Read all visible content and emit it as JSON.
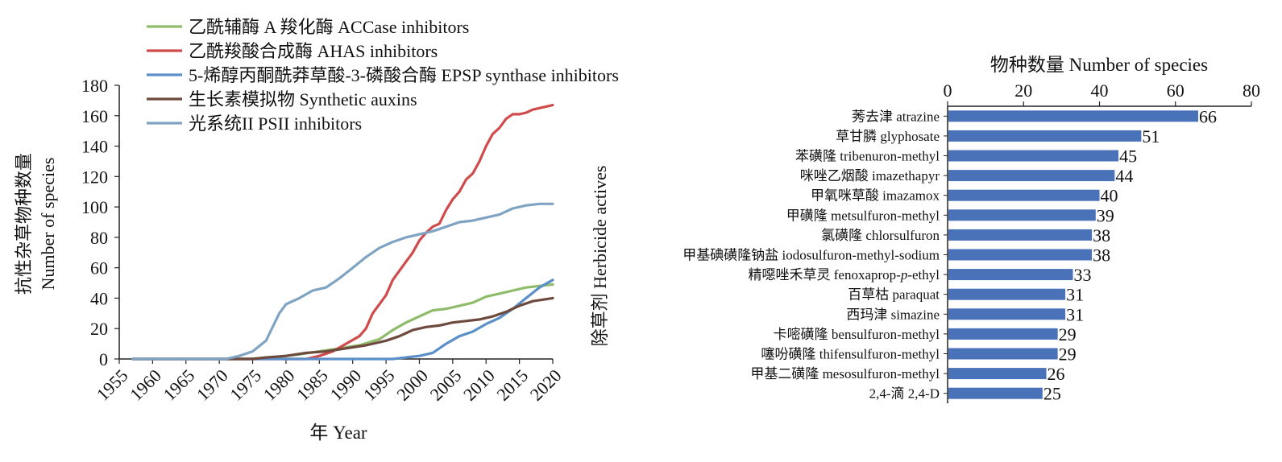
{
  "chart_data": [
    {
      "type": "line",
      "xlabel": "年 Year",
      "ylabel": [
        "抗性杂草物种数量",
        "Number of species"
      ],
      "xlim": [
        1955,
        2020
      ],
      "ylim": [
        0,
        180
      ],
      "xticks": [
        "1955",
        "1960",
        "1965",
        "1970",
        "1975",
        "1980",
        "1985",
        "1990",
        "1995",
        "2000",
        "2005",
        "2010",
        "2015",
        "2020"
      ],
      "yticks": [
        "0",
        "20",
        "40",
        "60",
        "80",
        "100",
        "120",
        "140",
        "160",
        "180"
      ],
      "legend_position": "top",
      "series": [
        {
          "name": "乙酰辅酶 A 羧化酶 ACCase inhibitors",
          "color": "#8fbc6a",
          "points": [
            [
              1957,
              0
            ],
            [
              1974,
              0
            ],
            [
              1978,
              1
            ],
            [
              1982,
              3
            ],
            [
              1985,
              5
            ],
            [
              1988,
              7
            ],
            [
              1991,
              9
            ],
            [
              1994,
              13
            ],
            [
              1996,
              19
            ],
            [
              1998,
              24
            ],
            [
              2000,
              28
            ],
            [
              2002,
              32
            ],
            [
              2004,
              33
            ],
            [
              2006,
              35
            ],
            [
              2008,
              37
            ],
            [
              2010,
              41
            ],
            [
              2012,
              43
            ],
            [
              2014,
              45
            ],
            [
              2016,
              47
            ],
            [
              2018,
              48
            ],
            [
              2020,
              49
            ]
          ]
        },
        {
          "name": "乙酰羧酸合成酶 AHAS inhibitors",
          "color": "#d04b4b",
          "points": [
            [
              1957,
              0
            ],
            [
              1983,
              0
            ],
            [
              1985,
              2
            ],
            [
              1987,
              5
            ],
            [
              1989,
              10
            ],
            [
              1991,
              15
            ],
            [
              1992,
              20
            ],
            [
              1993,
              30
            ],
            [
              1995,
              42
            ],
            [
              1996,
              52
            ],
            [
              1998,
              64
            ],
            [
              1999,
              70
            ],
            [
              2000,
              78
            ],
            [
              2001,
              83
            ],
            [
              2002,
              87
            ],
            [
              2003,
              89
            ],
            [
              2004,
              98
            ],
            [
              2005,
              105
            ],
            [
              2006,
              110
            ],
            [
              2007,
              118
            ],
            [
              2008,
              122
            ],
            [
              2009,
              130
            ],
            [
              2010,
              140
            ],
            [
              2011,
              148
            ],
            [
              2012,
              152
            ],
            [
              2013,
              158
            ],
            [
              2014,
              161
            ],
            [
              2015,
              161
            ],
            [
              2016,
              162
            ],
            [
              2017,
              164
            ],
            [
              2018,
              165
            ],
            [
              2019,
              166
            ],
            [
              2020,
              167
            ]
          ]
        },
        {
          "name": "5-烯醇丙酮酰莽草酸-3-磷酸合酶 EPSP synthase inhibitors",
          "color": "#5a8fc8",
          "points": [
            [
              1957,
              0
            ],
            [
              1996,
              0
            ],
            [
              1998,
              1
            ],
            [
              2000,
              2
            ],
            [
              2002,
              4
            ],
            [
              2004,
              10
            ],
            [
              2006,
              15
            ],
            [
              2008,
              18
            ],
            [
              2010,
              23
            ],
            [
              2012,
              27
            ],
            [
              2014,
              33
            ],
            [
              2016,
              40
            ],
            [
              2018,
              47
            ],
            [
              2020,
              52
            ]
          ]
        },
        {
          "name": "生长素模拟物 Synthetic auxins",
          "color": "#6e4a3e",
          "points": [
            [
              1957,
              0
            ],
            [
              1975,
              0
            ],
            [
              1977,
              1
            ],
            [
              1980,
              2
            ],
            [
              1983,
              4
            ],
            [
              1986,
              5
            ],
            [
              1989,
              7
            ],
            [
              1992,
              9
            ],
            [
              1995,
              12
            ],
            [
              1997,
              15
            ],
            [
              1999,
              19
            ],
            [
              2001,
              21
            ],
            [
              2003,
              22
            ],
            [
              2005,
              24
            ],
            [
              2007,
              25
            ],
            [
              2009,
              26
            ],
            [
              2011,
              28
            ],
            [
              2013,
              31
            ],
            [
              2015,
              35
            ],
            [
              2017,
              38
            ],
            [
              2020,
              40
            ]
          ]
        },
        {
          "name": "光系统II PSII inhibitors",
          "color": "#7fa3c2",
          "points": [
            [
              1957,
              0
            ],
            [
              1971,
              0
            ],
            [
              1973,
              2
            ],
            [
              1975,
              5
            ],
            [
              1977,
              12
            ],
            [
              1979,
              30
            ],
            [
              1980,
              36
            ],
            [
              1982,
              40
            ],
            [
              1984,
              45
            ],
            [
              1986,
              47
            ],
            [
              1988,
              53
            ],
            [
              1990,
              60
            ],
            [
              1992,
              67
            ],
            [
              1994,
              73
            ],
            [
              1996,
              77
            ],
            [
              1998,
              80
            ],
            [
              2000,
              82
            ],
            [
              2002,
              84
            ],
            [
              2004,
              87
            ],
            [
              2006,
              90
            ],
            [
              2008,
              91
            ],
            [
              2010,
              93
            ],
            [
              2012,
              95
            ],
            [
              2014,
              99
            ],
            [
              2016,
              101
            ],
            [
              2018,
              102
            ],
            [
              2020,
              102
            ]
          ]
        }
      ]
    },
    {
      "type": "bar",
      "orientation": "horizontal",
      "title": "物种数量 Number of species",
      "ylabel": "除草剂 Herbicide actives",
      "xlim": [
        0,
        80
      ],
      "xticks": [
        "0",
        "20",
        "40",
        "60",
        "80"
      ],
      "axis_position": "top",
      "bar_color": "#4a72b8",
      "categories": [
        "莠去津 atrazine",
        "草甘膦 glyphosate",
        "苯磺隆 tribenuron-methyl",
        "咪唑乙烟酸 imazethapyr",
        "甲氧咪草酸 imazamox",
        "甲磺隆 metsulfuron-methyl",
        "氯磺隆 chlorsulfuron",
        "甲基碘磺隆钠盐 iodosulfuron-methyl-sodium",
        "精噁唑禾草灵 fenoxaprop-p-ethyl",
        "百草枯 paraquat",
        "西玛津 simazine",
        "卡嘧磺隆 bensulfuron-methyl",
        "噻吩磺隆 thifensulfuron-methyl",
        "甲基二磺隆 mesosulfuron-methyl",
        "2,4-滴 2,4-D"
      ],
      "values": [
        66,
        51,
        45,
        44,
        40,
        39,
        38,
        38,
        33,
        31,
        31,
        29,
        29,
        26,
        25
      ],
      "data_labels": [
        "66",
        "51",
        "45",
        "44",
        "40",
        "39",
        "38",
        "38",
        "33",
        "31",
        "31",
        "29",
        "29",
        "26",
        "25"
      ]
    }
  ]
}
